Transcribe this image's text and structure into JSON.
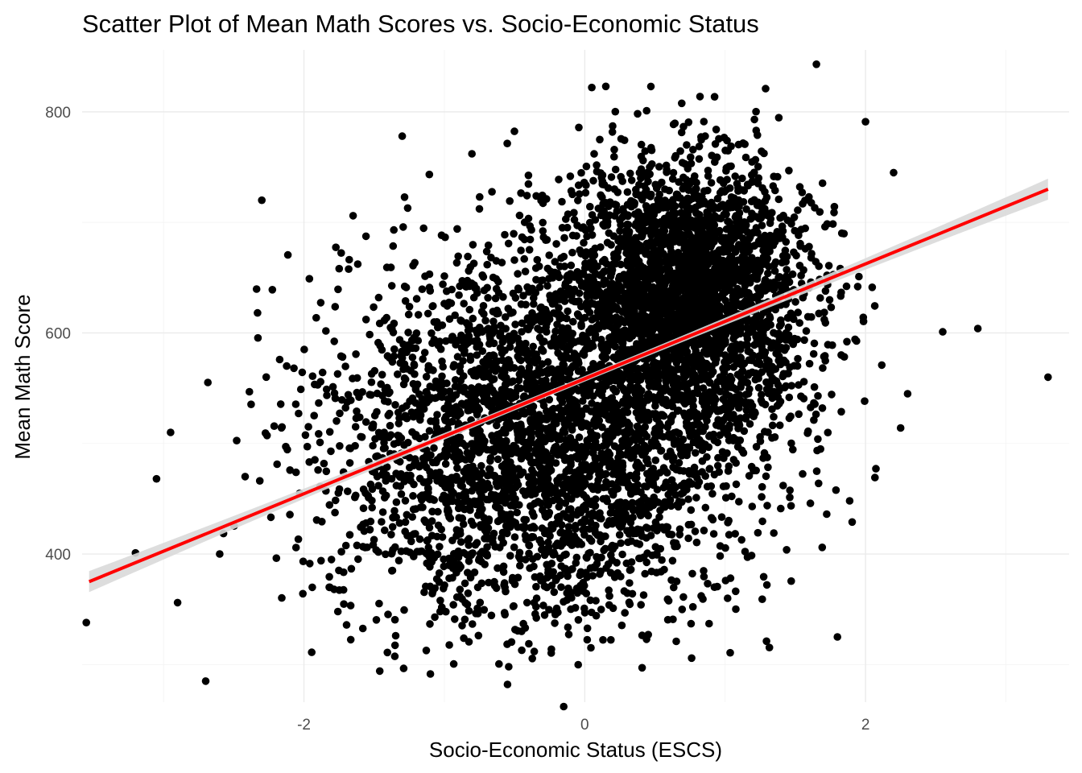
{
  "chart_data": {
    "type": "scatter",
    "title": "Scatter Plot of Mean Math Scores vs. Socio-Economic Status",
    "xlabel": "Socio-Economic Status (ESCS)",
    "ylabel": "Mean Math Score",
    "xlim": [
      -3.58,
      3.45
    ],
    "ylim": [
      266,
      856
    ],
    "x_ticks": [
      -2,
      0,
      2
    ],
    "x_tick_labels": [
      "-2",
      "0",
      "2"
    ],
    "y_ticks": [
      400,
      600,
      800
    ],
    "y_tick_labels": [
      "400",
      "600",
      "800"
    ],
    "grid": true,
    "legend": "none",
    "colors": {
      "points": "#000000",
      "fit_line": "#ff0000",
      "confidence_band": "#d9d9d9",
      "grid": "#ebebeb"
    },
    "fit_line": {
      "method": "linear regression with confidence band",
      "x": [
        -3.53,
        3.3
      ],
      "y": [
        375,
        730
      ]
    },
    "point_cloud": {
      "approx_count": 6000,
      "clusters": [
        {
          "x_mean": -0.3,
          "x_sd": 0.75,
          "y_mean": 505,
          "y_sd": 85,
          "weight": 0.55
        },
        {
          "x_mean": 0.75,
          "x_sd": 0.42,
          "y_mean": 635,
          "y_sd": 60,
          "weight": 0.45
        }
      ]
    },
    "outliers": [
      {
        "x": -3.55,
        "y": 338
      },
      {
        "x": -3.2,
        "y": 401
      },
      {
        "x": -3.05,
        "y": 468
      },
      {
        "x": -2.95,
        "y": 510
      },
      {
        "x": -2.9,
        "y": 356
      },
      {
        "x": -2.7,
        "y": 285
      },
      {
        "x": -2.6,
        "y": 400
      },
      {
        "x": -2.3,
        "y": 720
      },
      {
        "x": -1.65,
        "y": 706
      },
      {
        "x": -1.3,
        "y": 778
      },
      {
        "x": -0.55,
        "y": 282
      },
      {
        "x": -0.15,
        "y": 262
      },
      {
        "x": 0.05,
        "y": 822
      },
      {
        "x": 0.15,
        "y": 823
      },
      {
        "x": 1.65,
        "y": 843
      },
      {
        "x": 1.8,
        "y": 325
      },
      {
        "x": 2.0,
        "y": 791
      },
      {
        "x": 2.2,
        "y": 745
      },
      {
        "x": 2.25,
        "y": 514
      },
      {
        "x": 2.3,
        "y": 545
      },
      {
        "x": 2.55,
        "y": 601
      },
      {
        "x": 2.8,
        "y": 604
      },
      {
        "x": 3.3,
        "y": 560
      }
    ]
  }
}
